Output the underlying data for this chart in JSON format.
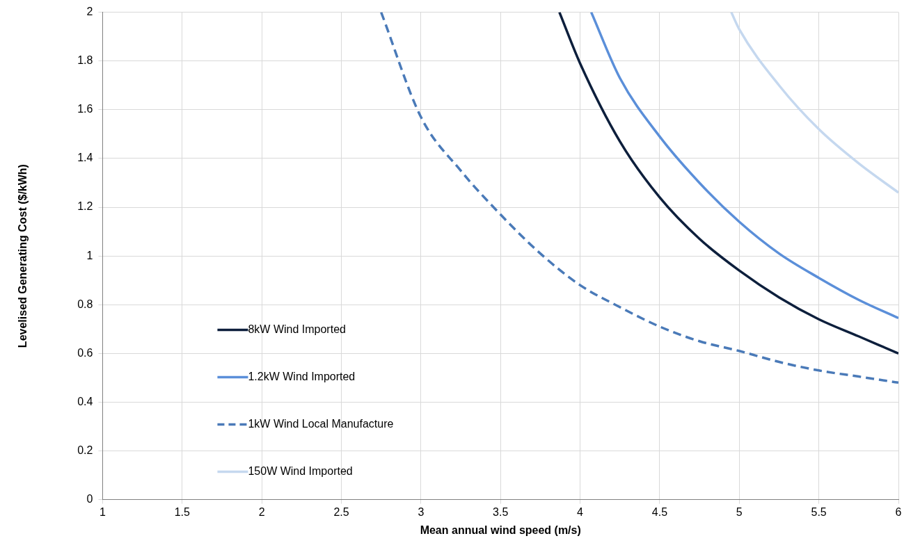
{
  "chart_data": {
    "type": "line",
    "xlabel": "Mean annual wind speed (m/s)",
    "ylabel": "Levelised Generating Cost ($/kWh)",
    "xlim": [
      1,
      6
    ],
    "xticks": [
      1,
      1.5,
      2,
      2.5,
      3,
      3.5,
      4,
      4.5,
      5,
      5.5,
      6
    ],
    "ylim": [
      0,
      2
    ],
    "yticks": [
      0,
      0.2,
      0.4,
      0.6,
      0.8,
      1,
      1.2,
      1.4,
      1.6,
      1.8,
      2
    ],
    "grid": true,
    "legend": "bottom left",
    "marker": "none",
    "series": [
      {
        "name": "8kW Wind Imported",
        "color": "#0d1f3c",
        "line_style": "solid",
        "x": [
          3.87,
          4,
          4.25,
          4.5,
          4.75,
          5,
          5.25,
          5.5,
          5.75,
          6
        ],
        "values": [
          2,
          1.79,
          1.47,
          1.24,
          1.07,
          0.94,
          0.83,
          0.74,
          0.67,
          0.6
        ]
      },
      {
        "name": "1.2kW Wind Imported",
        "color": "#5b8fd9",
        "line_style": "solid",
        "x": [
          4.07,
          4.25,
          4.5,
          4.75,
          5,
          5.25,
          5.5,
          5.75,
          6
        ],
        "values": [
          2,
          1.73,
          1.49,
          1.3,
          1.14,
          1.01,
          0.91,
          0.82,
          0.745
        ]
      },
      {
        "name": "1kW Wind Local Manufacture",
        "color": "#4a7ab8",
        "line_style": "dashed",
        "x": [
          2.75,
          3,
          3.25,
          3.5,
          3.75,
          4,
          4.25,
          4.5,
          4.75,
          5,
          5.25,
          5.5,
          5.75,
          6
        ],
        "values": [
          2,
          1.57,
          1.35,
          1.17,
          1.01,
          0.88,
          0.79,
          0.71,
          0.65,
          0.61,
          0.565,
          0.53,
          0.505,
          0.48
        ]
      },
      {
        "name": "150W Wind Imported",
        "color": "#c5d8ef",
        "line_style": "solid",
        "x": [
          4.95,
          5,
          5.25,
          5.5,
          5.75,
          6
        ],
        "values": [
          2,
          1.93,
          1.7,
          1.52,
          1.38,
          1.26
        ]
      }
    ]
  }
}
